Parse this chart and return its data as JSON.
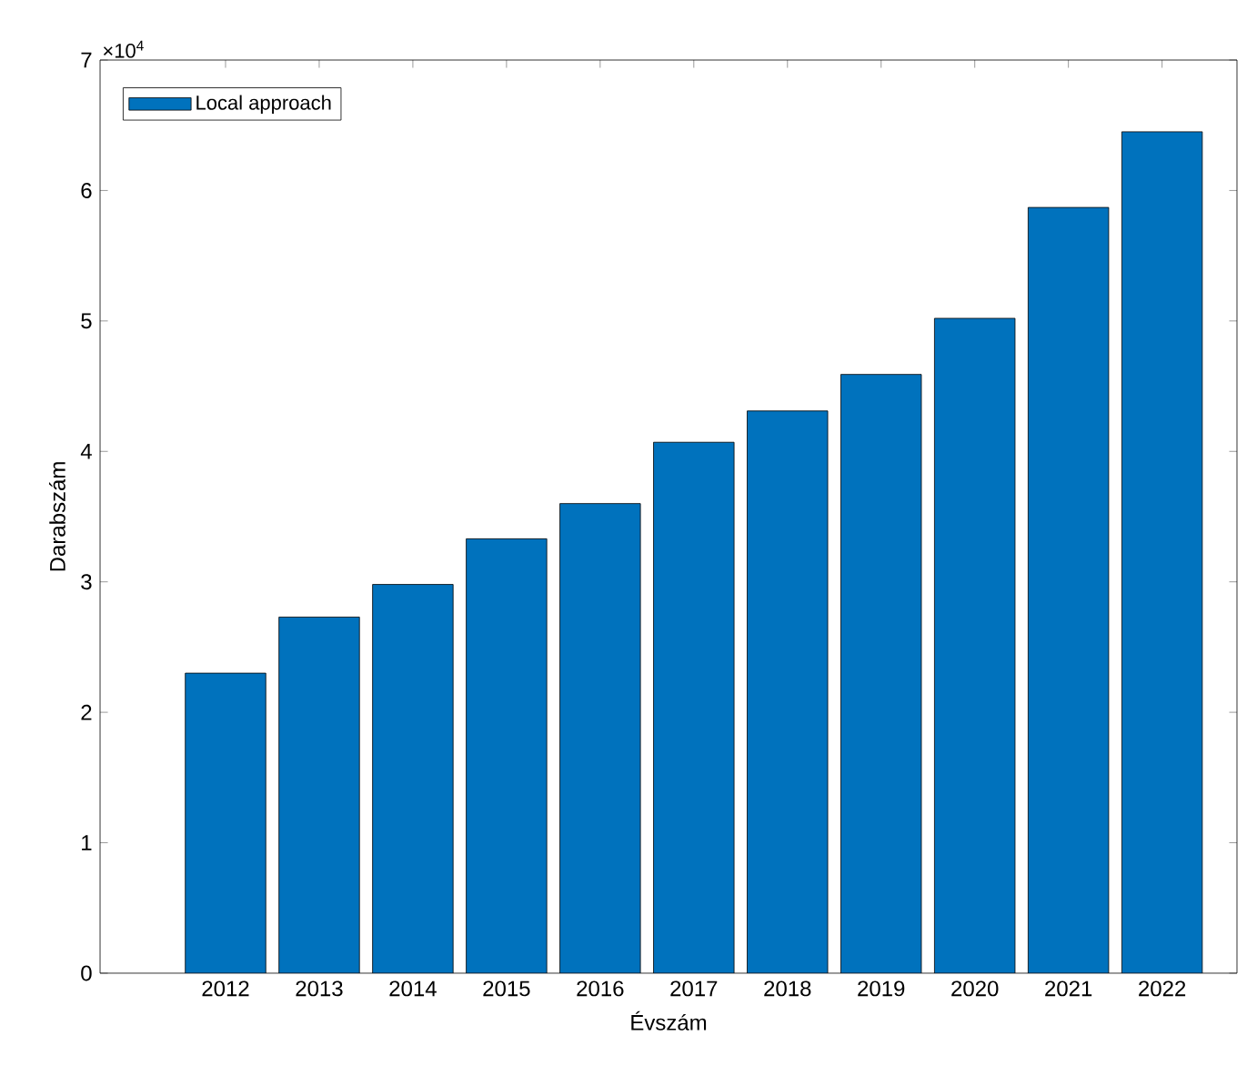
{
  "chart_data": {
    "type": "bar",
    "xlabel": "Évszám",
    "ylabel": "Darabszám",
    "categories": [
      "2012",
      "2013",
      "2014",
      "2015",
      "2016",
      "2017",
      "2018",
      "2019",
      "2020",
      "2021",
      "2022"
    ],
    "series": [
      {
        "name": "Local approach",
        "color": "#0072bd",
        "values": [
          2.3,
          2.73,
          2.98,
          3.33,
          3.6,
          4.07,
          4.31,
          4.59,
          5.02,
          5.87,
          6.45
        ]
      }
    ],
    "ylim": [
      0,
      7
    ],
    "yticks": [
      0,
      1,
      2,
      3,
      4,
      5,
      6,
      7
    ],
    "annotations": [
      "×10$^{4}$"
    ],
    "legend": "top left",
    "grid": false
  }
}
